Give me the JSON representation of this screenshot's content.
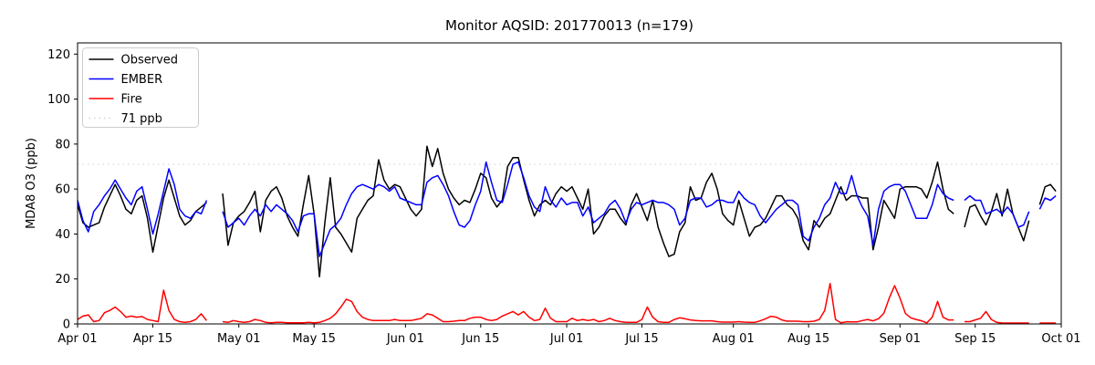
{
  "chart_data": {
    "type": "line",
    "title": "Monitor AQSID: 201770013 (n=179)",
    "xlabel": "",
    "ylabel": "MDA8 O3 (ppb)",
    "n_points": 179,
    "ylim": [
      0,
      125
    ],
    "y_ticks": [
      0,
      20,
      40,
      60,
      80,
      100,
      120
    ],
    "x_range_days": [
      0,
      183
    ],
    "x_ticks": [
      {
        "day": 0,
        "label": "Apr 01"
      },
      {
        "day": 14,
        "label": "Apr 15"
      },
      {
        "day": 30,
        "label": "May 01"
      },
      {
        "day": 44,
        "label": "May 15"
      },
      {
        "day": 61,
        "label": "Jun 01"
      },
      {
        "day": 75,
        "label": "Jun 15"
      },
      {
        "day": 91,
        "label": "Jul 01"
      },
      {
        "day": 105,
        "label": "Jul 15"
      },
      {
        "day": 122,
        "label": "Aug 01"
      },
      {
        "day": 136,
        "label": "Aug 15"
      },
      {
        "day": 153,
        "label": "Sep 01"
      },
      {
        "day": 167,
        "label": "Sep 15"
      },
      {
        "day": 183,
        "label": "Oct 01"
      }
    ],
    "reference_line": {
      "value": 71,
      "label": "71 ppb",
      "color": "#d3d3d3",
      "style": "dotted"
    },
    "legend": {
      "position": "upper-left",
      "entries": [
        "Observed",
        "EMBER",
        "Fire",
        "71 ppb"
      ]
    },
    "grid": false,
    "series": [
      {
        "name": "Observed",
        "color": "#000000",
        "values": [
          53,
          45,
          43,
          44,
          45,
          52,
          57,
          62,
          57,
          51,
          49,
          55,
          57,
          47,
          32,
          44,
          56,
          64,
          56,
          48,
          44,
          46,
          50,
          52,
          54,
          null,
          null,
          58,
          35,
          45,
          48,
          50,
          54,
          59,
          41,
          55,
          59,
          61,
          56,
          48,
          43,
          39,
          53,
          66,
          49,
          21,
          45,
          65,
          43,
          40,
          36,
          32,
          47,
          51,
          55,
          57,
          73,
          64,
          60,
          62,
          61,
          56,
          51,
          48,
          51,
          79,
          70,
          78,
          67,
          60,
          56,
          53,
          55,
          54,
          60,
          67,
          65,
          56,
          52,
          55,
          70,
          74,
          74,
          64,
          55,
          48,
          53,
          55,
          53,
          58,
          61,
          59,
          61,
          56,
          51,
          60,
          40,
          43,
          48,
          51,
          51,
          47,
          44,
          53,
          58,
          52,
          46,
          55,
          43,
          36,
          30,
          31,
          41,
          45,
          61,
          55,
          56,
          63,
          67,
          60,
          49,
          46,
          44,
          55,
          47,
          39,
          43,
          44,
          47,
          52,
          57,
          57,
          53,
          51,
          47,
          37,
          33,
          46,
          43,
          47,
          49,
          55,
          61,
          55,
          57,
          57,
          56,
          56,
          33,
          43,
          55,
          51,
          47,
          60,
          61,
          61,
          61,
          60,
          56,
          63,
          72,
          60,
          51,
          49,
          null,
          43,
          52,
          53,
          48,
          44,
          50,
          58,
          48,
          60,
          49,
          43,
          37,
          46,
          null,
          53,
          61,
          62,
          59
        ]
      },
      {
        "name": "EMBER",
        "color": "#0000ff",
        "values": [
          55,
          46,
          41,
          50,
          53,
          57,
          60,
          64,
          60,
          56,
          53,
          59,
          61,
          51,
          40,
          49,
          59,
          69,
          62,
          51,
          48,
          47,
          50,
          49,
          55,
          null,
          null,
          50,
          43,
          45,
          47,
          44,
          48,
          51,
          48,
          53,
          50,
          53,
          51,
          49,
          46,
          41,
          48,
          49,
          49,
          30,
          36,
          42,
          44,
          47,
          53,
          58,
          61,
          62,
          61,
          60,
          62,
          61,
          59,
          61,
          56,
          55,
          54,
          53,
          53,
          63,
          65,
          66,
          62,
          57,
          50,
          44,
          43,
          46,
          53,
          59,
          72,
          63,
          55,
          54,
          62,
          71,
          72,
          65,
          57,
          52,
          50,
          61,
          55,
          52,
          56,
          53,
          54,
          54,
          48,
          52,
          45,
          47,
          49,
          53,
          55,
          51,
          45,
          51,
          54,
          53,
          54,
          55,
          54,
          54,
          53,
          51,
          44,
          47,
          55,
          56,
          56,
          52,
          53,
          55,
          55,
          54,
          54,
          59,
          56,
          54,
          53,
          48,
          45,
          48,
          51,
          53,
          55,
          55,
          53,
          39,
          37,
          43,
          47,
          53,
          56,
          63,
          58,
          58,
          66,
          57,
          52,
          48,
          35,
          51,
          59,
          61,
          62,
          62,
          59,
          53,
          47,
          47,
          47,
          53,
          62,
          58,
          56,
          55,
          null,
          55,
          57,
          55,
          55,
          49,
          50,
          51,
          49,
          52,
          49,
          43,
          44,
          50,
          null,
          51,
          56,
          55,
          57
        ]
      },
      {
        "name": "Fire",
        "color": "#ff0000",
        "values": [
          2,
          3.5,
          4,
          1,
          1.5,
          5,
          6,
          7.5,
          5.5,
          3,
          3.5,
          3,
          3.3,
          2,
          1.5,
          1,
          15,
          6,
          2,
          1,
          0.7,
          1,
          2,
          4.5,
          1.5,
          null,
          null,
          1,
          0.7,
          1.5,
          1,
          0.7,
          1,
          2,
          1.5,
          0.7,
          0.5,
          0.7,
          0.7,
          0.5,
          0.5,
          0.5,
          0.5,
          0.7,
          0.5,
          0.7,
          1.5,
          2.5,
          4.5,
          7.5,
          11,
          10,
          5.5,
          3,
          2,
          1.5,
          1.5,
          1.5,
          1.5,
          2,
          1.5,
          1.5,
          1.5,
          2,
          2.5,
          4.5,
          4,
          2.5,
          1,
          1,
          1.2,
          1.5,
          1.5,
          2.5,
          3,
          3,
          2,
          1.5,
          2,
          3.5,
          4.5,
          5.5,
          4,
          5.5,
          3,
          1.5,
          2,
          7,
          2.5,
          1,
          1,
          1,
          2.5,
          1.5,
          2,
          1.5,
          2,
          1,
          1.5,
          2.5,
          1.5,
          1,
          0.7,
          0.7,
          0.7,
          2,
          7.5,
          3,
          1,
          0.7,
          0.7,
          2,
          2.7,
          2.3,
          1.8,
          1.5,
          1.4,
          1.4,
          1.4,
          1,
          0.8,
          0.8,
          0.8,
          1,
          0.8,
          0.7,
          0.7,
          1.4,
          2.3,
          3.4,
          3,
          1.8,
          1.2,
          1.2,
          1.2,
          1,
          1,
          1.2,
          2,
          6,
          18,
          2,
          0.5,
          0.9,
          0.9,
          0.9,
          1.5,
          2,
          1.4,
          2.3,
          4.7,
          11.5,
          17,
          11.5,
          4.7,
          2.7,
          2,
          1.4,
          0.5,
          3,
          10,
          3,
          1.8,
          1.8,
          null,
          1,
          1,
          1.8,
          2.5,
          5.5,
          2,
          0.7,
          0.4,
          0.4,
          0.4,
          0.4,
          0.4,
          0.4,
          null,
          0.4,
          0.4,
          0.4,
          0.4
        ]
      }
    ]
  }
}
